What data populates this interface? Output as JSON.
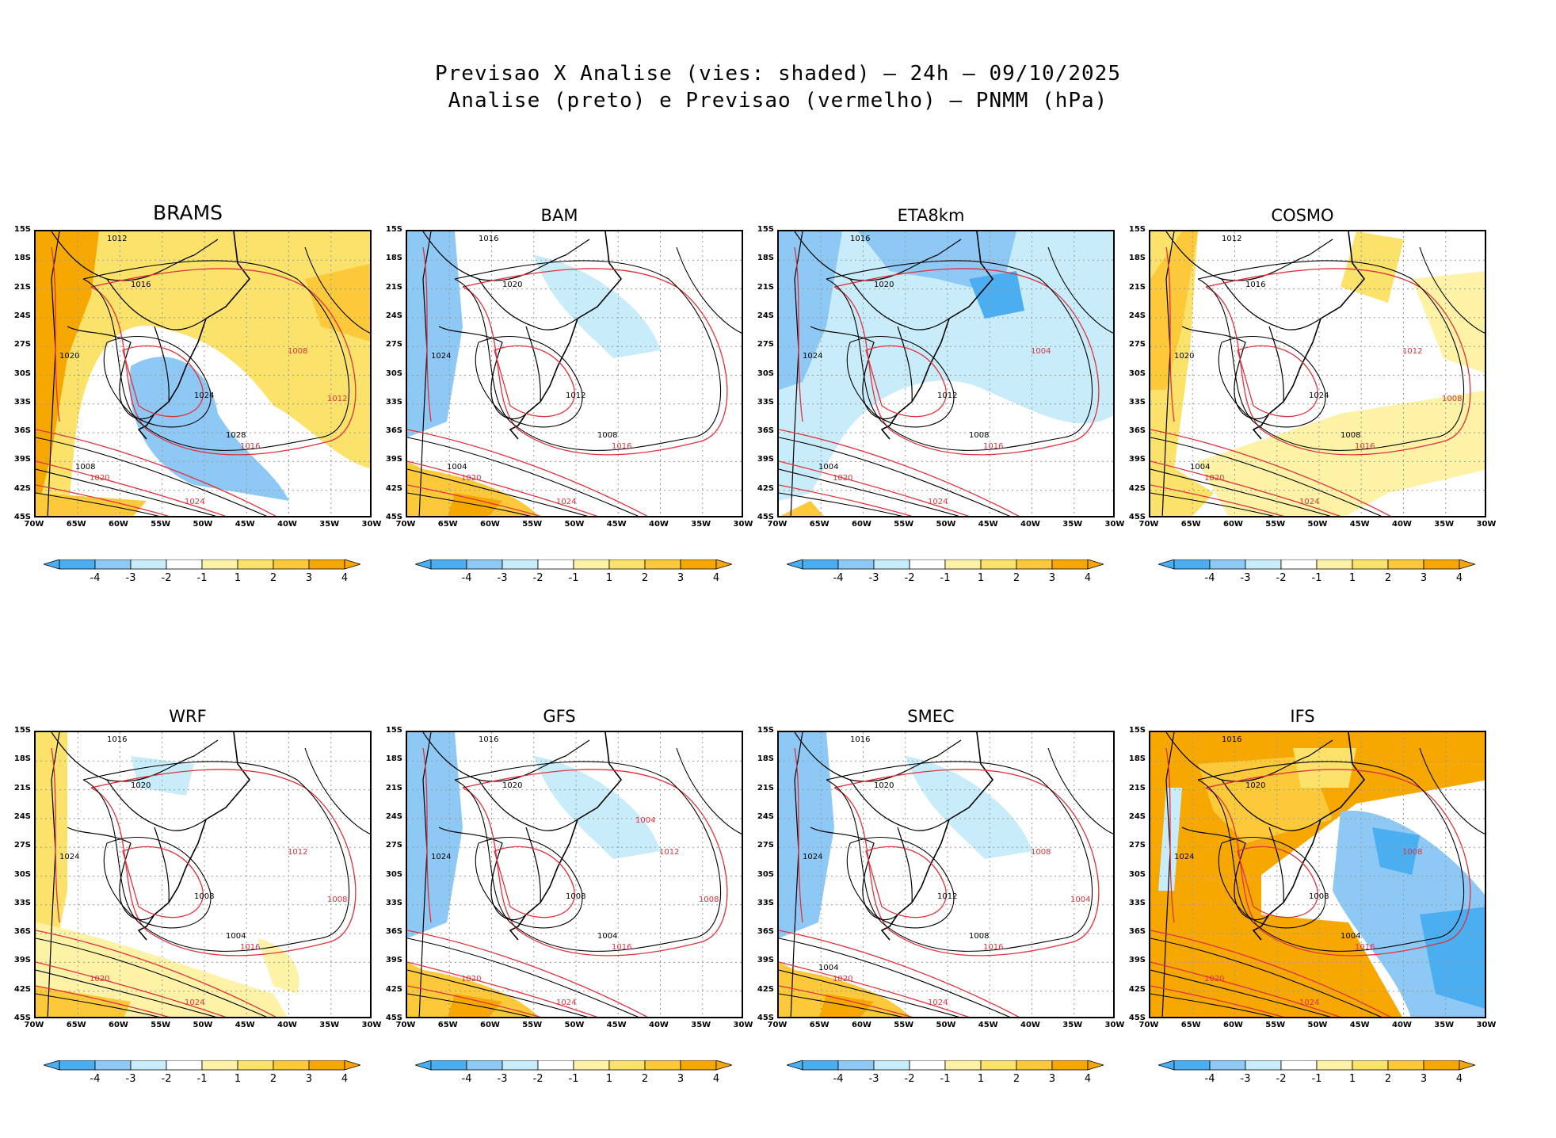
{
  "title_line1": "Previsao X Analise (vies: shaded) — 24h — 09/10/2025",
  "title_line2": "Analise (preto) e Previsao (vermelho) — PNMM (hPa)",
  "lat_labels": [
    "15S",
    "18S",
    "21S",
    "24S",
    "27S",
    "30S",
    "33S",
    "36S",
    "39S",
    "42S",
    "45S"
  ],
  "lon_labels": [
    "70W",
    "65W",
    "60W",
    "55W",
    "50W",
    "45W",
    "40W",
    "35W",
    "30W"
  ],
  "colorbar": {
    "labels": [
      "-4",
      "-3",
      "-2",
      "-1",
      "1",
      "2",
      "3",
      "4"
    ],
    "colors": [
      "#4aaef0",
      "#8ec8f5",
      "#c8ecfa",
      "#ffffff",
      "#fdf2a6",
      "#fbe26a",
      "#fbc93a",
      "#f7a800"
    ]
  },
  "colors": {
    "analysis_contour": "#000000",
    "forecast_contour": "#e0323c",
    "coastline": "#000000"
  },
  "panels": [
    {
      "name": "BRAMS",
      "bias": "warm",
      "labels_black": [
        "1012",
        "1016",
        "1020",
        "1024",
        "1028",
        "1008"
      ],
      "labels_red": [
        "1016",
        "1020",
        "1024",
        "1008",
        "1012"
      ]
    },
    {
      "name": "BAM",
      "bias": "mild",
      "labels_black": [
        "1016",
        "1020",
        "1024",
        "1012",
        "1008",
        "1004"
      ],
      "labels_red": [
        "1016",
        "1020",
        "1024"
      ]
    },
    {
      "name": "ETA8km",
      "bias": "cold",
      "labels_black": [
        "1016",
        "1020",
        "1024",
        "1012",
        "1008",
        "1004"
      ],
      "labels_red": [
        "1016",
        "1020",
        "1024",
        "1004"
      ]
    },
    {
      "name": "COSMO",
      "bias": "warm-east",
      "labels_black": [
        "1012",
        "1016",
        "1020",
        "1024",
        "1008",
        "1004"
      ],
      "labels_red": [
        "1016",
        "1020",
        "1024",
        "1012",
        "1008"
      ]
    },
    {
      "name": "WRF",
      "bias": "mild-warm",
      "labels_black": [
        "1016",
        "1020",
        "1024",
        "1008",
        "1004"
      ],
      "labels_red": [
        "1016",
        "1020",
        "1024",
        "1012",
        "1008"
      ]
    },
    {
      "name": "GFS",
      "bias": "mild",
      "labels_black": [
        "1016",
        "1020",
        "1024",
        "1008",
        "1004"
      ],
      "labels_red": [
        "1016",
        "1020",
        "1024",
        "1012",
        "1008",
        "1004"
      ]
    },
    {
      "name": "SMEC",
      "bias": "mild",
      "labels_black": [
        "1016",
        "1020",
        "1024",
        "1012",
        "1008",
        "1004"
      ],
      "labels_red": [
        "1016",
        "1020",
        "1024",
        "1008",
        "1004"
      ]
    },
    {
      "name": "IFS",
      "bias": "strong",
      "labels_black": [
        "1016",
        "1020",
        "1024",
        "1008",
        "1004"
      ],
      "labels_red": [
        "1016",
        "1020",
        "1024",
        "1008"
      ]
    }
  ]
}
